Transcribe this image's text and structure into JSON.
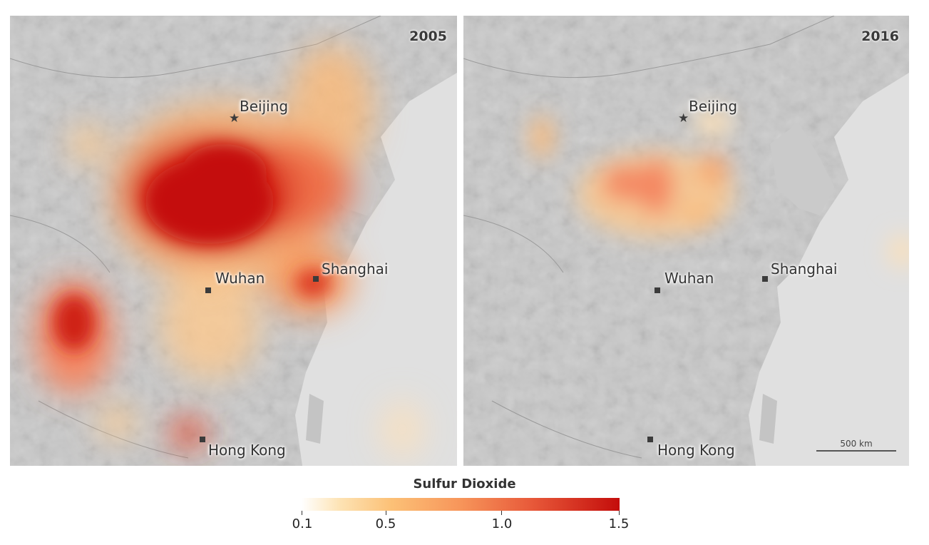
{
  "panels": [
    {
      "year": "2005"
    },
    {
      "year": "2016"
    }
  ],
  "cities": {
    "beijing": "Beijing",
    "wuhan": "Wuhan",
    "shanghai": "Shanghai",
    "hong_kong": "Hong Kong"
  },
  "scale_bar": {
    "label": "500 km"
  },
  "legend": {
    "title": "Sulfur Dioxide",
    "ticks": [
      "0.1",
      "0.5",
      "1.0",
      "1.5"
    ],
    "min": 0.1,
    "max": 1.5
  },
  "colors": {
    "low": "#ffffff",
    "mid": "#f7955a",
    "high": "#c40d0b",
    "land": "#c8c8c8",
    "sea": "#e2e2e2"
  }
}
